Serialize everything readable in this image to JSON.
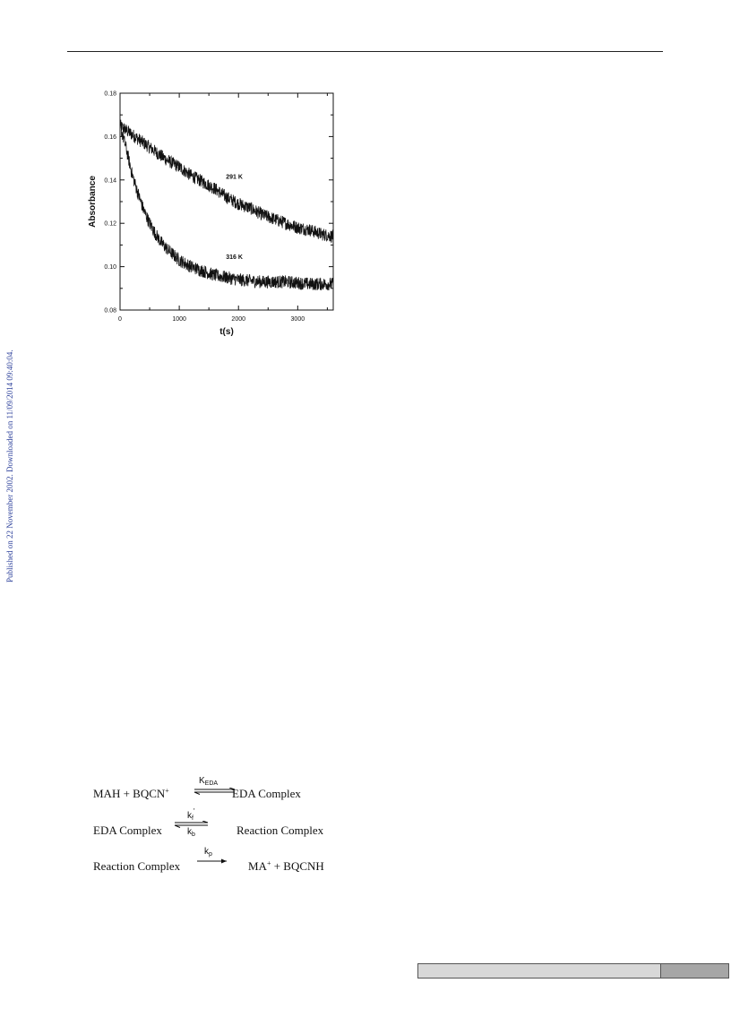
{
  "side_note": "Published on 22 November 2002. Downloaded on 11/09/2014 09:40:04.",
  "chart_data": {
    "type": "line",
    "xlabel": "t(s)",
    "ylabel": "Absorbance",
    "xlim": [
      0,
      3600
    ],
    "ylim": [
      0.08,
      0.18
    ],
    "xticks": [
      0,
      1000,
      2000,
      3000
    ],
    "yticks": [
      0.08,
      0.1,
      0.12,
      0.14,
      0.16,
      0.18
    ],
    "ytick_labels": [
      "0.08",
      "0.10",
      "0.12",
      "0.14",
      "0.16",
      "0.18"
    ],
    "series": [
      {
        "name": "291 K",
        "x": [
          0,
          200,
          400,
          600,
          800,
          1000,
          1200,
          1400,
          1600,
          1800,
          2000,
          2200,
          2400,
          2600,
          2800,
          3000,
          3200,
          3400,
          3600
        ],
        "y": [
          0.165,
          0.161,
          0.157,
          0.153,
          0.149,
          0.146,
          0.142,
          0.139,
          0.136,
          0.132,
          0.129,
          0.127,
          0.124,
          0.122,
          0.12,
          0.118,
          0.117,
          0.115,
          0.114
        ]
      },
      {
        "name": "316 K",
        "x": [
          0,
          100,
          200,
          300,
          400,
          500,
          600,
          700,
          800,
          1000,
          1200,
          1400,
          1600,
          1800,
          2000,
          2400,
          2800,
          3200,
          3600
        ],
        "y": [
          0.165,
          0.155,
          0.143,
          0.134,
          0.126,
          0.12,
          0.115,
          0.111,
          0.108,
          0.103,
          0.1,
          0.098,
          0.096,
          0.095,
          0.094,
          0.093,
          0.093,
          0.092,
          0.092
        ]
      }
    ],
    "annotations": [
      "291 K",
      "316 K"
    ],
    "grid": false
  },
  "scheme": {
    "line1_left": "MAH  +  BQCN",
    "line1_sup": "+",
    "line1_k": "K",
    "line1_k_sub": "EDA",
    "line1_right": "EDA Complex",
    "line2_left": "EDA Complex",
    "line2_k_top": "k",
    "line2_k_top_sub": "f",
    "line2_k_top_prime": "'",
    "line2_k_bottom": "k",
    "line2_k_bottom_sub": "b",
    "line2_right": "Reaction Complex",
    "line3_left": "Reaction Complex",
    "line3_k": "k",
    "line3_k_sub": "p",
    "line3_right_a": "MA",
    "line3_right_sup": "+",
    "line3_right_b": "  +  BQCNH"
  }
}
